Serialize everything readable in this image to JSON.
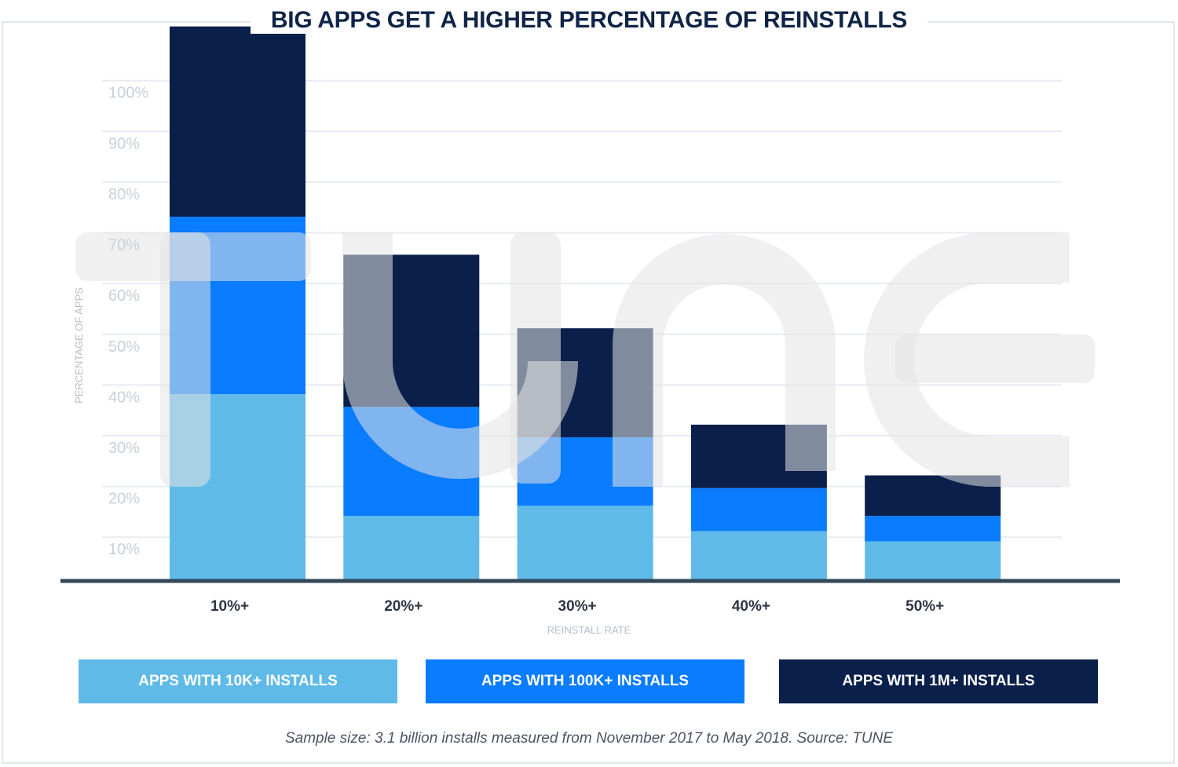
{
  "chart_data": {
    "type": "bar",
    "stacked": true,
    "title": "BIG APPS GET A HIGHER PERCENTAGE OF REINSTALLS",
    "xlabel": "REINSTALL RATE",
    "ylabel": "PERCENTAGE OF APPS",
    "categories": [
      "10%+",
      "20%+",
      "30%+",
      "40%+",
      "50%+"
    ],
    "yticks": [
      "10%",
      "20%",
      "30%",
      "40%",
      "50%",
      "60%",
      "70%",
      "80%",
      "90%",
      "100%"
    ],
    "ylim": [
      4,
      108
    ],
    "grid": true,
    "legend_placement": "bottom",
    "series": [
      {
        "name": "APPS WITH 10K+ INSTALLS",
        "values": [
          36.5,
          12.5,
          14.5,
          9.5,
          7.5
        ],
        "color": "#5fbae8"
      },
      {
        "name": "APPS WITH 100K+ INSTALLS",
        "values": [
          35,
          21.5,
          13.5,
          8.5,
          5
        ],
        "color": "#0a7cff"
      },
      {
        "name": "APPS WITH 1M+ INSTALLS",
        "values": [
          37.5,
          30,
          21.5,
          12.5,
          8
        ],
        "color": "#0a1f4a"
      }
    ],
    "watermark": "TUNE"
  },
  "footnote": "Sample size: 3.1 billion installs measured from November 2017 to May 2018. Source: TUNE"
}
